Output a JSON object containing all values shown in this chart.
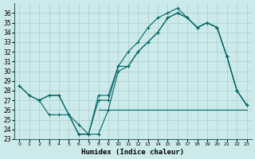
{
  "xlabel": "Humidex (Indice chaleur)",
  "bg_color": "#cdeaea",
  "grid_color": "#aacccc",
  "line_color": "#006666",
  "xlim": [
    -0.5,
    23.5
  ],
  "ylim": [
    23,
    37
  ],
  "yticks": [
    23,
    24,
    25,
    26,
    27,
    28,
    29,
    30,
    31,
    32,
    33,
    34,
    35,
    36
  ],
  "xticks": [
    0,
    1,
    2,
    3,
    4,
    5,
    6,
    7,
    8,
    9,
    10,
    11,
    12,
    13,
    14,
    15,
    16,
    17,
    18,
    19,
    20,
    21,
    22,
    23
  ],
  "line1_x": [
    0,
    1,
    2,
    3,
    4,
    5,
    6,
    7,
    8,
    9,
    10,
    11,
    12,
    13,
    14,
    15,
    16,
    17,
    18,
    19,
    20,
    21,
    22,
    23
  ],
  "line1_y": [
    28.5,
    27.5,
    27.0,
    27.5,
    27.5,
    25.5,
    23.5,
    23.5,
    27.5,
    27.5,
    30.5,
    32.0,
    33.0,
    34.5,
    35.5,
    36.0,
    36.5,
    35.5,
    34.5,
    35.0,
    34.5,
    31.5,
    28.0,
    26.5
  ],
  "line2_x": [
    0,
    1,
    2,
    3,
    4,
    5,
    6,
    7,
    8,
    9,
    10,
    11,
    12,
    13,
    14,
    15,
    16,
    17,
    18,
    19,
    20,
    21,
    22,
    23
  ],
  "line2_y": [
    28.5,
    27.5,
    27.0,
    27.5,
    27.5,
    25.5,
    23.5,
    23.5,
    27.0,
    27.0,
    30.5,
    30.5,
    32.0,
    33.0,
    34.0,
    35.5,
    36.0,
    35.5,
    34.5,
    35.0,
    34.5,
    31.5,
    28.0,
    26.5
  ],
  "line3_x": [
    2,
    3,
    4,
    5,
    6,
    7,
    8,
    9,
    10,
    11,
    12,
    13,
    14,
    15,
    16,
    17,
    18,
    19,
    20,
    21,
    22,
    23
  ],
  "line3_y": [
    27.0,
    25.5,
    25.5,
    25.5,
    24.5,
    23.5,
    23.5,
    26.0,
    30.0,
    30.5,
    32.0,
    33.0,
    34.0,
    35.5,
    36.0,
    35.5,
    34.5,
    35.0,
    34.5,
    31.5,
    28.0,
    26.5
  ],
  "line4_x": [
    8,
    9,
    10,
    11,
    12,
    13,
    14,
    15,
    16,
    17,
    18,
    19,
    20,
    21,
    22,
    23
  ],
  "line4_y": [
    26.0,
    26.0,
    26.0,
    26.0,
    26.0,
    26.0,
    26.0,
    26.0,
    26.0,
    26.0,
    26.0,
    26.0,
    26.0,
    26.0,
    26.0,
    26.0
  ]
}
